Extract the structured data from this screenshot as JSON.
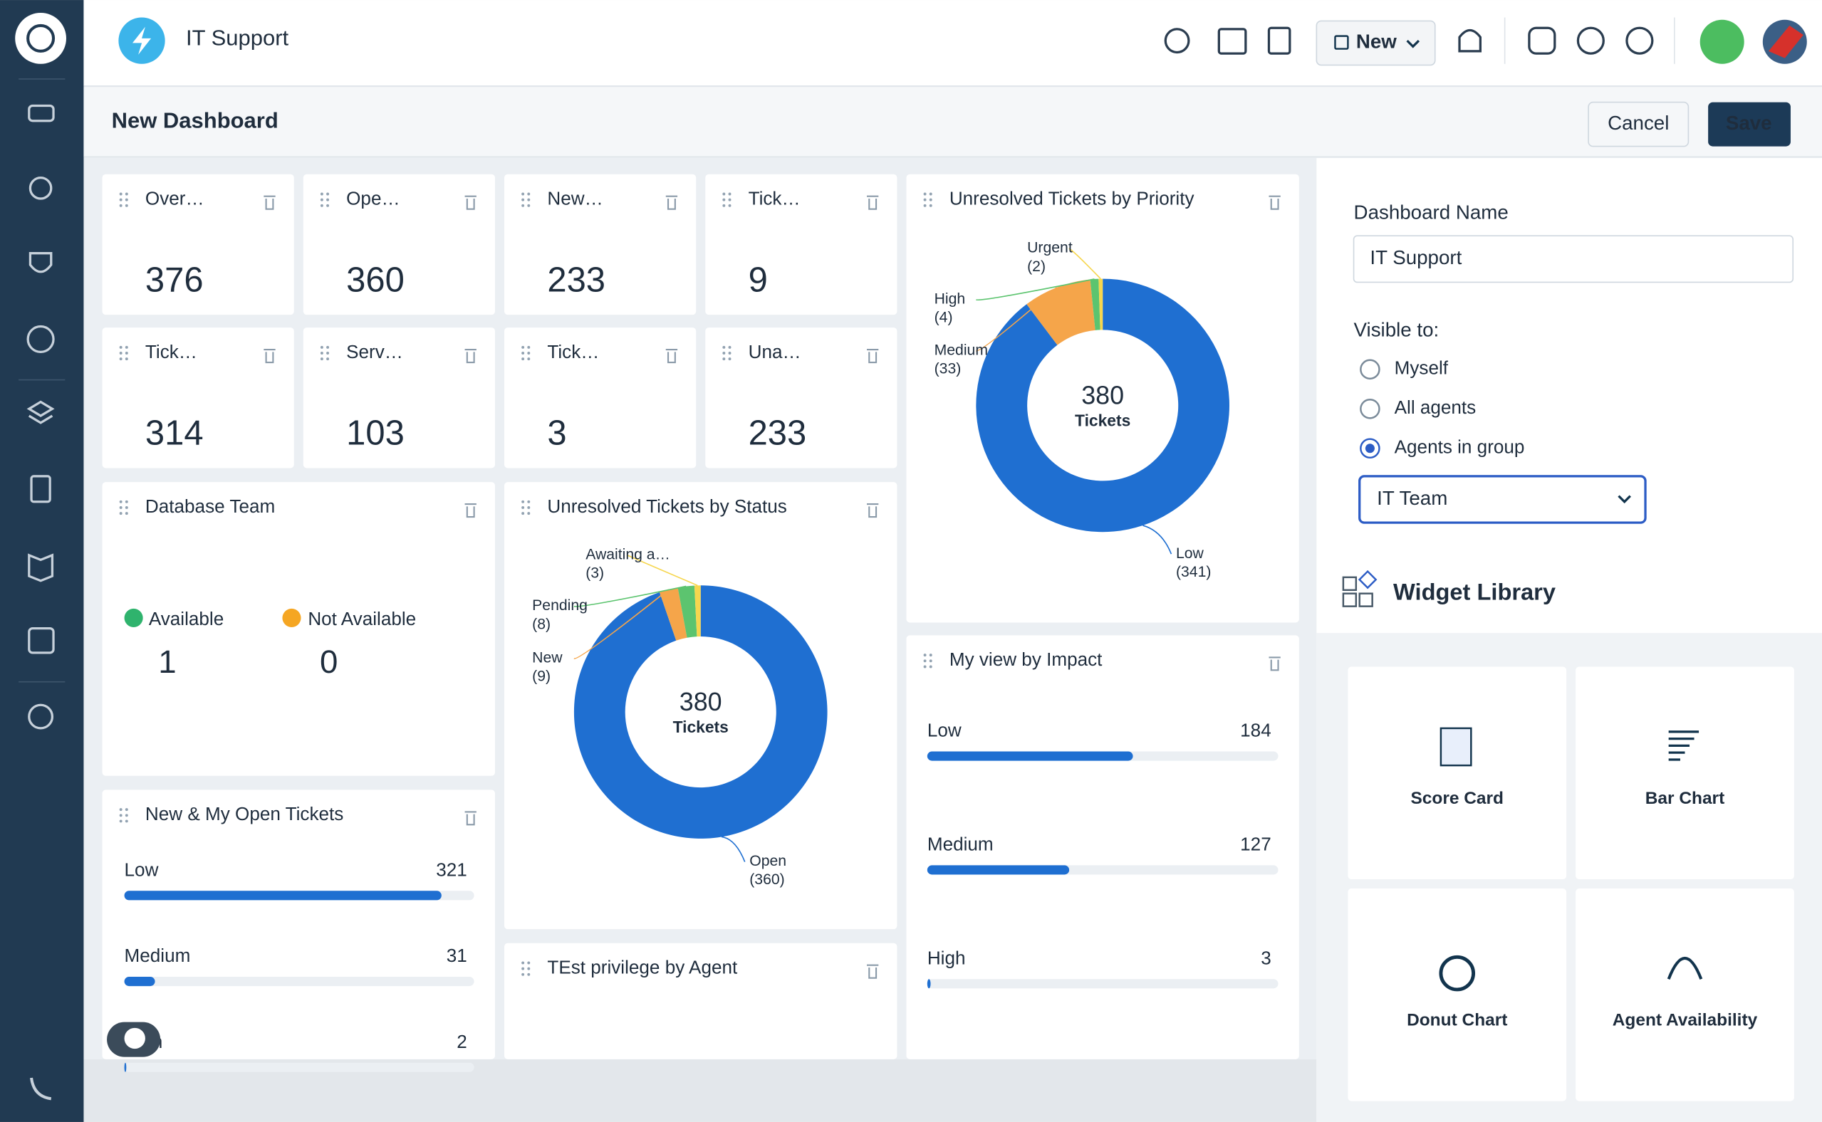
{
  "header": {
    "app_name": "IT Support",
    "new_button": "New"
  },
  "toolbar": {
    "title": "New Dashboard",
    "cancel": "Cancel",
    "save": "Save"
  },
  "scorecards": [
    {
      "label": "Over…",
      "value": 376,
      "color": "#e5484d"
    },
    {
      "label": "Ope…",
      "value": 360,
      "color": "#e5484d"
    },
    {
      "label": "New…",
      "value": 233,
      "color": "#12344d"
    },
    {
      "label": "Tick…",
      "value": 9,
      "color": "#12344d"
    },
    {
      "label": "Tick…",
      "value": 314,
      "color": "#e5484d"
    },
    {
      "label": "Serv…",
      "value": 103,
      "color": "#12344d"
    },
    {
      "label": "Tick…",
      "value": 3,
      "color": "#12344d"
    },
    {
      "label": "Una…",
      "value": 233,
      "color": "#e5484d"
    }
  ],
  "availability": {
    "title": "Database Team",
    "available_label": "Available",
    "available": 1,
    "not_available_label": "Not Available",
    "not_available": 0
  },
  "donuts": [
    {
      "title": "Unresolved Tickets by Priority",
      "total": 380,
      "center_label": "Tickets",
      "segments": [
        {
          "name": "Low",
          "value": 341,
          "value_label": "(341)",
          "color": "#1f6fd1"
        },
        {
          "name": "Medium",
          "value": 33,
          "value_label": "(33)",
          "color": "#f5a54a"
        },
        {
          "name": "High",
          "value": 4,
          "value_label": "(4)",
          "color": "#5cc46f"
        },
        {
          "name": "Urgent",
          "value": 2,
          "value_label": "(2)",
          "color": "#f6d64e"
        }
      ]
    },
    {
      "title": "Unresolved Tickets by Status",
      "total": 380,
      "center_label": "Tickets",
      "segments": [
        {
          "name": "Open",
          "value": 360,
          "value_label": "(360)",
          "color": "#1f6fd1"
        },
        {
          "name": "New",
          "value": 9,
          "value_label": "(9)",
          "color": "#f5a54a"
        },
        {
          "name": "Pending",
          "value": 8,
          "value_label": "(8)",
          "color": "#5cc46f"
        },
        {
          "name": "Awaiting a…",
          "value": 3,
          "value_label": "(3)",
          "color": "#f6d64e"
        }
      ]
    }
  ],
  "bar_lists": [
    {
      "title": "New & My Open Tickets",
      "items": [
        {
          "name": "Low",
          "value": 321
        },
        {
          "name": "Medium",
          "value": 31
        },
        {
          "name": "High",
          "value": 2
        }
      ]
    },
    {
      "title": "My view by Impact",
      "items": [
        {
          "name": "Low",
          "value": 184
        },
        {
          "name": "Medium",
          "value": 127
        },
        {
          "name": "High",
          "value": 3
        }
      ]
    }
  ],
  "empty_widget": {
    "title": "TEst privilege by Agent"
  },
  "settings": {
    "dashboard_name_label": "Dashboard Name",
    "dashboard_name": "IT Support",
    "visible_label": "Visible to:",
    "options": [
      "Myself",
      "All agents",
      "Agents in group"
    ],
    "selected": 2,
    "group": "IT Team"
  },
  "widget_library": {
    "title": "Widget Library",
    "items": [
      "Score Card",
      "Bar Chart",
      "Donut Chart",
      "Agent Availability"
    ]
  }
}
